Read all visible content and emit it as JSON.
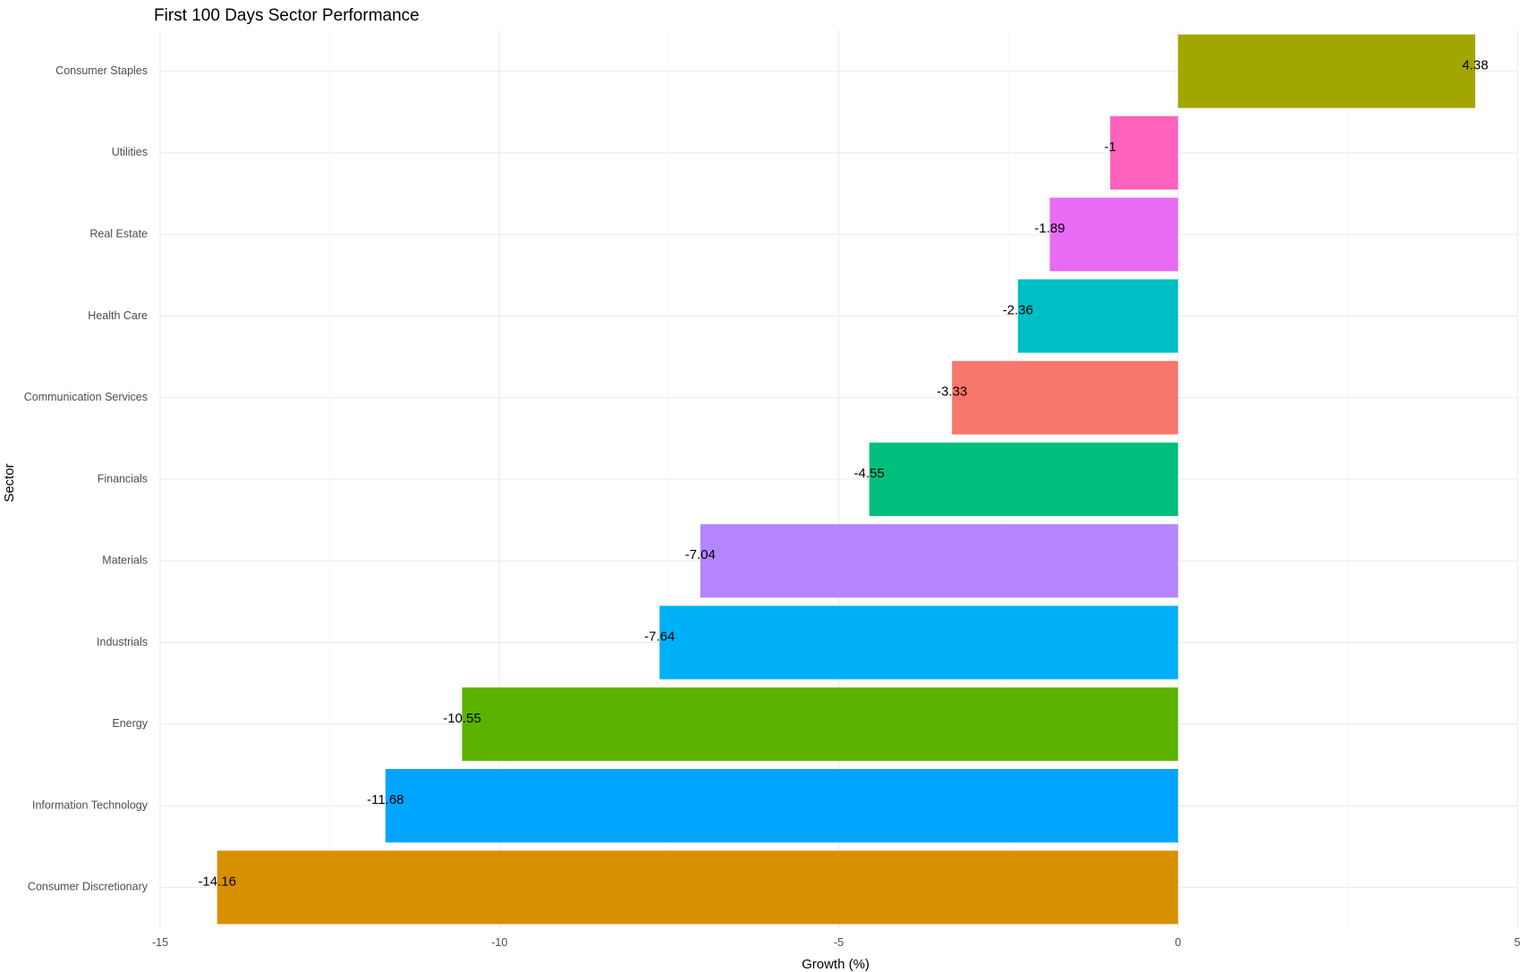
{
  "chart_data": {
    "type": "bar",
    "orientation": "horizontal",
    "title": "First 100 Days Sector Performance",
    "xlabel": "Growth (%)",
    "ylabel": "Sector",
    "xlim": [
      -15,
      5
    ],
    "xticks": [
      -15,
      -10,
      -5,
      0,
      5
    ],
    "grid": true,
    "legend": "none",
    "categories": [
      "Consumer Staples",
      "Utilities",
      "Real Estate",
      "Health Care",
      "Communication Services",
      "Financials",
      "Materials",
      "Industrials",
      "Energy",
      "Information Technology",
      "Consumer Discretionary"
    ],
    "values": [
      4.38,
      -1,
      -1.89,
      -2.36,
      -3.33,
      -4.55,
      -7.04,
      -7.64,
      -10.55,
      -11.68,
      -14.16
    ],
    "value_labels": [
      "4.38",
      "-1",
      "-1.89",
      "-2.36",
      "-3.33",
      "-4.55",
      "-7.04",
      "-7.64",
      "-10.55",
      "-11.68",
      "-14.16"
    ],
    "colors": [
      "#A3A500",
      "#FF62BC",
      "#E76BF3",
      "#00BFC4",
      "#F8766D",
      "#00BF7D",
      "#B385FF",
      "#00B0F6",
      "#5BB300",
      "#00A5FF",
      "#D89000"
    ]
  }
}
